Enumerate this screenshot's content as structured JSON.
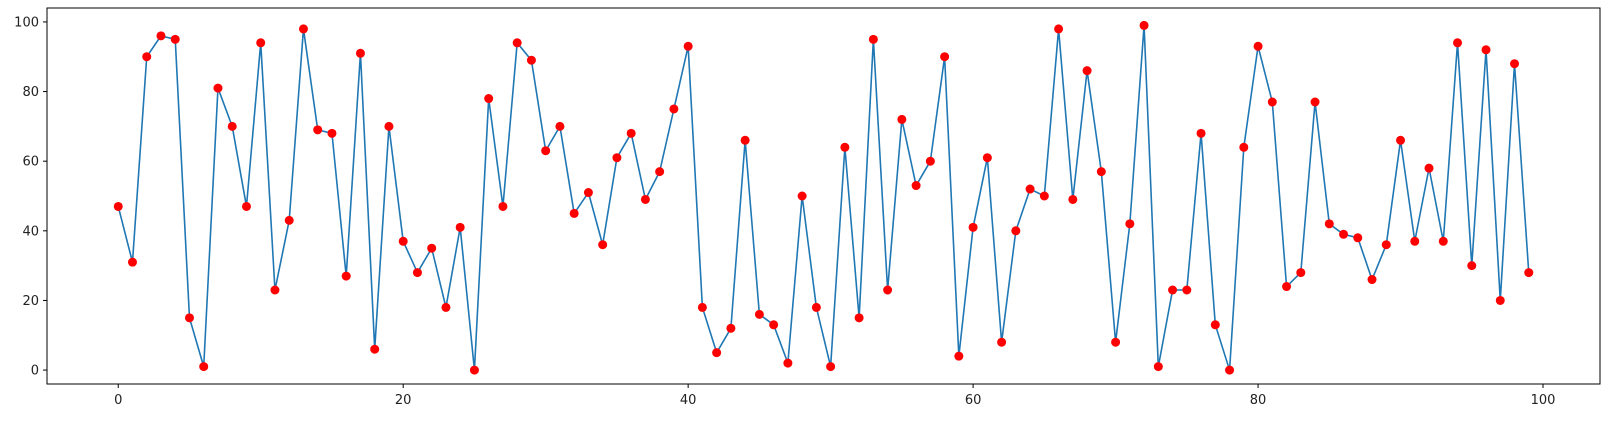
{
  "chart_data": {
    "type": "line",
    "title": "",
    "xlabel": "",
    "ylabel": "",
    "xlim": [
      -5,
      104
    ],
    "ylim": [
      -4,
      104
    ],
    "x_ticks": [
      0,
      20,
      40,
      60,
      80,
      100
    ],
    "y_ticks": [
      0,
      20,
      40,
      60,
      80,
      100
    ],
    "grid": false,
    "line_color": "#1f77b4",
    "marker_color": "#ff0000",
    "series": [
      {
        "values": [
          47,
          31,
          90,
          96,
          95,
          15,
          1,
          81,
          70,
          47,
          94,
          23,
          43,
          98,
          69,
          68,
          27,
          91,
          6,
          70,
          37,
          28,
          35,
          18,
          41,
          0,
          78,
          47,
          94,
          89,
          63,
          70,
          45,
          51,
          36,
          61,
          68,
          49,
          57,
          75,
          93,
          18,
          5,
          12,
          66,
          16,
          13,
          2,
          50,
          18,
          1,
          64,
          15,
          95,
          23,
          72,
          53,
          60,
          90,
          4,
          41,
          61,
          8,
          40,
          52,
          50,
          98,
          49,
          86,
          57,
          8,
          42,
          99,
          1,
          23,
          23,
          68,
          13,
          0,
          64,
          93,
          77,
          24,
          28,
          77,
          42,
          39,
          38,
          26,
          36,
          66,
          37,
          58,
          37,
          94,
          30,
          92,
          20,
          88,
          28
        ]
      }
    ]
  }
}
